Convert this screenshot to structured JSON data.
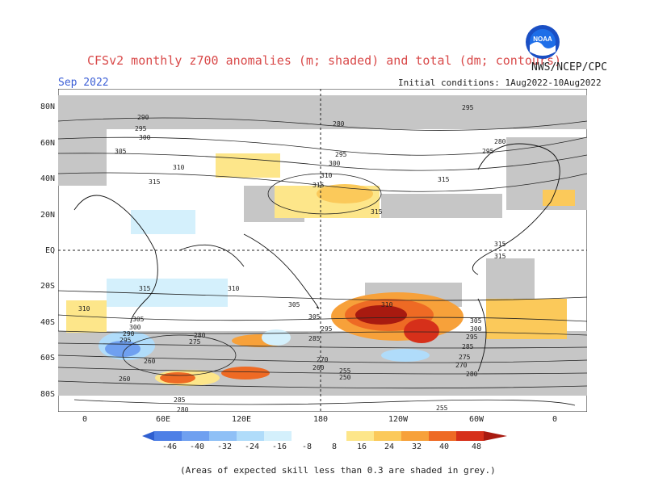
{
  "header": {
    "title": "CFSv2 monthly z700 anomalies (m; shaded) and total (dm; contours)",
    "agency": "NWS/NCEP/CPC",
    "logo_text": "NOAA",
    "month": "Sep 2022",
    "initial_conditions": "Initial conditions: 1Aug2022-10Aug2022"
  },
  "map": {
    "lat_labels": [
      "80N",
      "60N",
      "40N",
      "20N",
      "EQ",
      "20S",
      "40S",
      "60S",
      "80S"
    ],
    "lon_labels": [
      "0",
      "60E",
      "120E",
      "180",
      "120W",
      "60W",
      "0"
    ],
    "contour_labels": [
      "290",
      "295",
      "300",
      "305",
      "310",
      "315",
      "280",
      "285",
      "275",
      "270",
      "260",
      "255",
      "250"
    ]
  },
  "colorbar": {
    "labels": [
      "-46",
      "-40",
      "-32",
      "-24",
      "-16",
      "-8",
      "8",
      "16",
      "24",
      "32",
      "40",
      "48"
    ],
    "colors": [
      "#2f5fd0",
      "#4d7fe6",
      "#6fa0f0",
      "#8fc0f6",
      "#b0dcfa",
      "#d4f0fc",
      "#ffffff",
      "#fde68a",
      "#fbc95a",
      "#f7a13a",
      "#ee6a24",
      "#d6301a",
      "#a81a10"
    ]
  },
  "footnote": "(Areas of expected skill less than 0.3 are shaded in grey.)"
}
